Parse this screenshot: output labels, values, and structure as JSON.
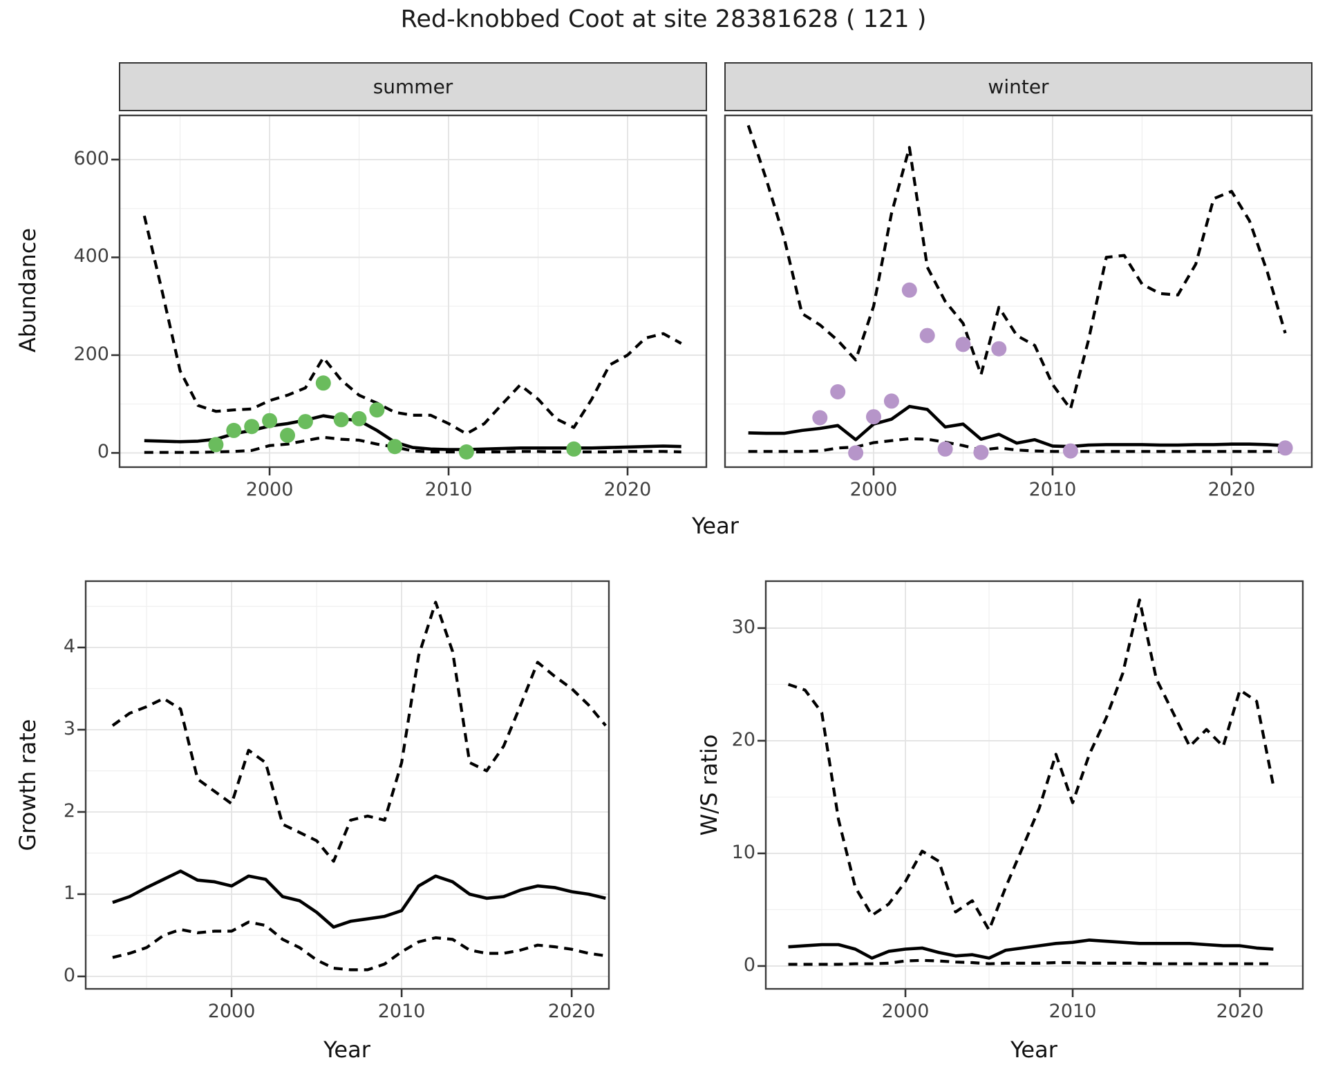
{
  "title": "Red-knobbed Coot at site 28381628 ( 121 )",
  "facets": [
    {
      "label": "summer"
    },
    {
      "label": "winter"
    }
  ],
  "axis_titles": {
    "abundance": "Abundance",
    "year_top": "Year",
    "growth_rate": "Growth rate",
    "year_growth": "Year",
    "ws_ratio": "W/S ratio",
    "year_ws": "Year"
  },
  "colors": {
    "summer_dot": "#6abc5d",
    "winter_dot": "#b695c9",
    "line": "#000000",
    "strip_bg": "#d9d9d9",
    "panel_border": "#3c3c3c",
    "grid_major": "#e3e3e3",
    "grid_minor": "#efefef",
    "tick_mark": "#333333",
    "axis_text": "#404040"
  },
  "chart_data": [
    {
      "id": "summer",
      "type": "line",
      "title": "summer",
      "xlabel": "Year",
      "ylabel": "Abundance",
      "xlim": [
        1991.58,
        2024.44
      ],
      "ylim": [
        -30.5,
        691.8
      ],
      "xticks": [
        2000,
        2010,
        2020
      ],
      "xticks_minor": [
        1995,
        2005,
        2015
      ],
      "yticks": [
        0,
        200,
        400,
        600
      ],
      "yticks_minor": [
        100,
        300,
        500
      ],
      "show_y_labels": true,
      "x": [
        1993,
        1994,
        1995,
        1996,
        1997,
        1998,
        1999,
        2000,
        2001,
        2002,
        2003,
        2004,
        2005,
        2006,
        2007,
        2008,
        2009,
        2010,
        2011,
        2012,
        2013,
        2014,
        2015,
        2016,
        2017,
        2018,
        2019,
        2020,
        2021,
        2022,
        2023
      ],
      "series": [
        {
          "name": "mean",
          "style": "solid",
          "values": [
            25,
            24,
            23,
            24,
            28,
            39,
            46,
            55,
            60,
            67,
            76,
            70,
            66,
            46,
            22,
            11,
            8,
            7,
            7,
            8,
            9,
            10,
            10,
            10,
            10,
            10,
            11,
            12,
            13,
            14,
            13
          ]
        },
        {
          "name": "upper_ci",
          "style": "dashed",
          "values": [
            485,
            330,
            168,
            97,
            85,
            88,
            90,
            107,
            118,
            133,
            195,
            149,
            118,
            102,
            83,
            77,
            77,
            60,
            39,
            60,
            100,
            139,
            110,
            70,
            52,
            110,
            180,
            200,
            235,
            244,
            224
          ]
        },
        {
          "name": "lower_ci",
          "style": "dashed",
          "values": [
            1,
            1,
            1,
            1,
            2,
            3,
            5,
            15,
            18,
            25,
            32,
            28,
            26,
            18,
            12,
            4,
            2,
            2,
            2,
            2,
            2,
            3,
            3,
            2,
            2,
            2,
            2,
            3,
            3,
            3,
            2
          ]
        }
      ],
      "points": {
        "name": "observed_counts",
        "color_key": "summer_dot",
        "x": [
          1997,
          1998,
          1999,
          2000,
          2001,
          2002,
          2003,
          2004,
          2005,
          2006,
          2007,
          2011,
          2017
        ],
        "y": [
          17,
          46,
          54,
          66,
          36,
          64,
          143,
          68,
          70,
          88,
          13,
          2,
          8
        ]
      }
    },
    {
      "id": "winter",
      "type": "line",
      "title": "winter",
      "xlabel": "Year",
      "ylabel": "Abundance",
      "xlim": [
        1991.66,
        2024.52
      ],
      "ylim": [
        -30.5,
        691.8
      ],
      "xticks": [
        2000,
        2010,
        2020
      ],
      "xticks_minor": [
        1995,
        2005,
        2015
      ],
      "yticks": [
        0,
        200,
        400,
        600
      ],
      "yticks_minor": [
        100,
        300,
        500
      ],
      "show_y_labels": false,
      "x": [
        1993,
        1994,
        1995,
        1996,
        1997,
        1998,
        1999,
        2000,
        2001,
        2002,
        2003,
        2004,
        2005,
        2006,
        2007,
        2008,
        2009,
        2010,
        2011,
        2012,
        2013,
        2014,
        2015,
        2016,
        2017,
        2018,
        2019,
        2020,
        2021,
        2022,
        2023
      ],
      "series": [
        {
          "name": "mean",
          "style": "solid",
          "values": [
            41,
            40,
            40,
            46,
            50,
            56,
            27,
            59,
            69,
            95,
            89,
            53,
            59,
            28,
            38,
            20,
            27,
            14,
            13,
            16,
            17,
            17,
            17,
            16,
            16,
            17,
            17,
            18,
            18,
            17,
            15
          ]
        },
        {
          "name": "upper_ci",
          "style": "dashed",
          "values": [
            670,
            560,
            440,
            285,
            262,
            230,
            190,
            300,
            490,
            625,
            380,
            310,
            265,
            160,
            298,
            240,
            220,
            140,
            90,
            230,
            400,
            404,
            345,
            326,
            323,
            386,
            520,
            535,
            475,
            370,
            245
          ]
        },
        {
          "name": "lower_ci",
          "style": "dashed",
          "values": [
            3,
            3,
            3,
            3,
            4,
            10,
            12,
            21,
            25,
            29,
            28,
            22,
            15,
            6,
            10,
            6,
            4,
            3,
            3,
            3,
            3,
            3,
            3,
            3,
            3,
            3,
            3,
            3,
            3,
            3,
            3
          ]
        }
      ],
      "points": {
        "name": "observed_counts",
        "color_key": "winter_dot",
        "x": [
          1997,
          1998,
          1999,
          2000,
          2001,
          2002,
          2003,
          2004,
          2005,
          2006,
          2007,
          2011,
          2023
        ],
        "y": [
          72,
          125,
          0,
          74,
          106,
          333,
          240,
          8,
          222,
          1,
          213,
          4,
          10
        ]
      }
    },
    {
      "id": "growth",
      "type": "line",
      "title": "Growth rate",
      "xlabel": "Year",
      "ylabel": "Growth rate",
      "xlim": [
        1991.38,
        2022.23
      ],
      "ylim": [
        -0.16,
        4.815
      ],
      "xticks": [
        2000,
        2010,
        2020
      ],
      "xticks_minor": [
        1995,
        2005,
        2015
      ],
      "yticks": [
        0,
        1,
        2,
        3,
        4
      ],
      "yticks_minor": [
        0.5,
        1.5,
        2.5,
        3.5,
        4.5
      ],
      "show_y_labels": true,
      "x": [
        1993,
        1994,
        1995,
        1996,
        1997,
        1998,
        1999,
        2000,
        2001,
        2002,
        2003,
        2004,
        2005,
        2006,
        2007,
        2008,
        2009,
        2010,
        2011,
        2012,
        2013,
        2014,
        2015,
        2016,
        2017,
        2018,
        2019,
        2020,
        2021,
        2022
      ],
      "series": [
        {
          "name": "mean",
          "style": "solid",
          "values": [
            0.9,
            0.97,
            1.08,
            1.18,
            1.28,
            1.17,
            1.15,
            1.1,
            1.22,
            1.18,
            0.97,
            0.92,
            0.78,
            0.6,
            0.67,
            0.7,
            0.73,
            0.8,
            1.1,
            1.22,
            1.15,
            1.0,
            0.95,
            0.97,
            1.05,
            1.1,
            1.08,
            1.03,
            1.0,
            0.95
          ]
        },
        {
          "name": "upper_ci",
          "style": "dashed",
          "values": [
            3.05,
            3.2,
            3.28,
            3.38,
            3.25,
            2.4,
            2.25,
            2.1,
            2.75,
            2.6,
            1.85,
            1.75,
            1.65,
            1.4,
            1.9,
            1.95,
            1.9,
            2.6,
            3.9,
            4.55,
            3.95,
            2.6,
            2.5,
            2.8,
            3.3,
            3.82,
            3.65,
            3.5,
            3.3,
            3.05
          ]
        },
        {
          "name": "lower_ci",
          "style": "dashed",
          "values": [
            0.23,
            0.28,
            0.35,
            0.5,
            0.57,
            0.53,
            0.55,
            0.55,
            0.66,
            0.62,
            0.45,
            0.35,
            0.2,
            0.1,
            0.08,
            0.08,
            0.15,
            0.3,
            0.42,
            0.47,
            0.45,
            0.32,
            0.28,
            0.28,
            0.32,
            0.38,
            0.36,
            0.33,
            0.28,
            0.25
          ]
        }
      ],
      "points": null
    },
    {
      "id": "ws",
      "type": "line",
      "title": "W/S ratio",
      "xlabel": "Year",
      "ylabel": "W/S ratio",
      "xlim": [
        1991.61,
        2023.8
      ],
      "ylim": [
        -2.09,
        34.23
      ],
      "xticks": [
        2000,
        2010,
        2020
      ],
      "xticks_minor": [
        1995,
        2005,
        2015
      ],
      "yticks": [
        0,
        10,
        20,
        30
      ],
      "yticks_minor": [
        5,
        15,
        25
      ],
      "show_y_labels": true,
      "x": [
        1993,
        1994,
        1995,
        1996,
        1997,
        1998,
        1999,
        2000,
        2001,
        2002,
        2003,
        2004,
        2005,
        2006,
        2007,
        2008,
        2009,
        2010,
        2011,
        2012,
        2013,
        2014,
        2015,
        2016,
        2017,
        2018,
        2019,
        2020,
        2021,
        2022
      ],
      "series": [
        {
          "name": "mean",
          "style": "solid",
          "values": [
            1.7,
            1.8,
            1.9,
            1.9,
            1.5,
            0.7,
            1.3,
            1.5,
            1.6,
            1.2,
            0.9,
            1.0,
            0.7,
            1.4,
            1.6,
            1.8,
            2.0,
            2.1,
            2.3,
            2.2,
            2.1,
            2.0,
            2.0,
            2.0,
            2.0,
            1.9,
            1.8,
            1.8,
            1.6,
            1.5
          ]
        },
        {
          "name": "upper_ci",
          "style": "dashed",
          "values": [
            25,
            24.5,
            22.5,
            13,
            7,
            4.5,
            5.5,
            7.5,
            10.2,
            9.3,
            4.8,
            5.8,
            3.2,
            7,
            10.5,
            14,
            18.8,
            14.5,
            18.8,
            22,
            26,
            32.5,
            25.5,
            22.5,
            19.5,
            21,
            19.5,
            24.5,
            23.5,
            16
          ]
        },
        {
          "name": "lower_ci",
          "style": "dashed",
          "values": [
            0.15,
            0.15,
            0.15,
            0.15,
            0.2,
            0.2,
            0.25,
            0.45,
            0.5,
            0.45,
            0.35,
            0.3,
            0.2,
            0.25,
            0.25,
            0.25,
            0.3,
            0.3,
            0.25,
            0.25,
            0.25,
            0.25,
            0.2,
            0.2,
            0.2,
            0.2,
            0.2,
            0.2,
            0.2,
            0.2
          ]
        }
      ],
      "points": null
    }
  ]
}
